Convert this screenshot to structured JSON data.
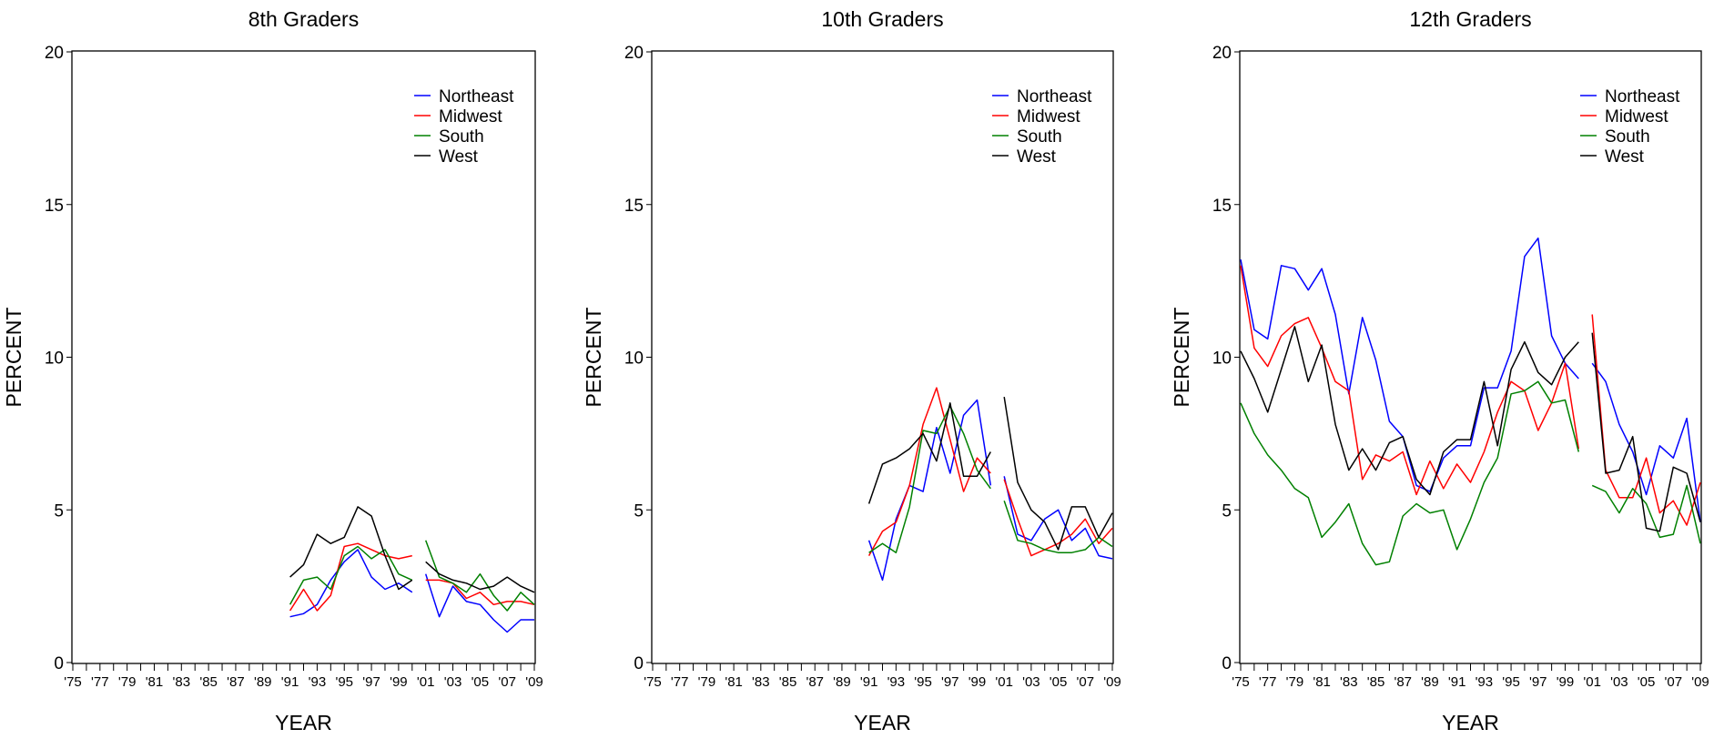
{
  "chart_data": [
    {
      "type": "line",
      "title": "8th Graders",
      "xlabel": "YEAR",
      "ylabel": "PERCENT",
      "ylim": [
        0,
        20
      ],
      "yticks": [
        "0",
        "5",
        "10",
        "15",
        "20"
      ],
      "xticks": [
        "'75",
        "'77",
        "'79",
        "'81",
        "'83",
        "'85",
        "'87",
        "'89",
        "'91",
        "'93",
        "'95",
        "'97",
        "'99",
        "'01",
        "'03",
        "'05",
        "'07",
        "'09"
      ],
      "xlim": [
        1975,
        2009
      ],
      "legend_position": "top-right",
      "series": [
        {
          "name": "Northeast",
          "color": "#0000ff",
          "segments": [
            {
              "x": [
                1991,
                1992,
                1993,
                1994,
                1995,
                1996,
                1997,
                1998,
                1999,
                2000
              ],
              "y": [
                1.5,
                1.6,
                1.9,
                2.7,
                3.3,
                3.7,
                2.8,
                2.4,
                2.6,
                2.3
              ]
            },
            {
              "x": [
                2001,
                2002,
                2003,
                2004,
                2005,
                2006,
                2007,
                2008,
                2009
              ],
              "y": [
                2.9,
                1.5,
                2.5,
                2.0,
                1.9,
                1.4,
                1.0,
                1.4,
                1.4
              ]
            }
          ]
        },
        {
          "name": "Midwest",
          "color": "#ff0000",
          "segments": [
            {
              "x": [
                1991,
                1992,
                1993,
                1994,
                1995,
                1996,
                1997,
                1998,
                1999,
                2000
              ],
              "y": [
                1.7,
                2.4,
                1.7,
                2.2,
                3.8,
                3.9,
                3.7,
                3.5,
                3.4,
                3.5
              ]
            },
            {
              "x": [
                2001,
                2002,
                2003,
                2004,
                2005,
                2006,
                2007,
                2008,
                2009
              ],
              "y": [
                2.7,
                2.7,
                2.6,
                2.1,
                2.3,
                1.9,
                2.0,
                2.0,
                1.9
              ]
            }
          ]
        },
        {
          "name": "South",
          "color": "#008000",
          "segments": [
            {
              "x": [
                1991,
                1992,
                1993,
                1994,
                1995,
                1996,
                1997,
                1998,
                1999,
                2000
              ],
              "y": [
                1.9,
                2.7,
                2.8,
                2.4,
                3.5,
                3.8,
                3.4,
                3.7,
                2.9,
                2.7
              ]
            },
            {
              "x": [
                2001,
                2002,
                2003,
                2004,
                2005,
                2006,
                2007,
                2008,
                2009
              ],
              "y": [
                4.0,
                2.8,
                2.6,
                2.3,
                2.9,
                2.2,
                1.7,
                2.3,
                1.9
              ]
            }
          ]
        },
        {
          "name": "West",
          "color": "#000000",
          "segments": [
            {
              "x": [
                1991,
                1992,
                1993,
                1994,
                1995,
                1996,
                1997,
                1998,
                1999,
                2000
              ],
              "y": [
                2.8,
                3.2,
                4.2,
                3.9,
                4.1,
                5.1,
                4.8,
                3.5,
                2.4,
                2.7
              ]
            },
            {
              "x": [
                2001,
                2002,
                2003,
                2004,
                2005,
                2006,
                2007,
                2008,
                2009
              ],
              "y": [
                3.3,
                2.9,
                2.7,
                2.6,
                2.4,
                2.5,
                2.8,
                2.5,
                2.3
              ]
            }
          ]
        }
      ]
    },
    {
      "type": "line",
      "title": "10th Graders",
      "xlabel": "YEAR",
      "ylabel": "PERCENT",
      "ylim": [
        0,
        20
      ],
      "yticks": [
        "0",
        "5",
        "10",
        "15",
        "20"
      ],
      "xticks": [
        "'75",
        "'77",
        "'79",
        "'81",
        "'83",
        "'85",
        "'87",
        "'89",
        "'91",
        "'93",
        "'95",
        "'97",
        "'99",
        "'01",
        "'03",
        "'05",
        "'07",
        "'09"
      ],
      "xlim": [
        1975,
        2009
      ],
      "legend_position": "top-right",
      "series": [
        {
          "name": "Northeast",
          "color": "#0000ff",
          "segments": [
            {
              "x": [
                1991,
                1992,
                1993,
                1994,
                1995,
                1996,
                1997,
                1998,
                1999,
                2000
              ],
              "y": [
                4.0,
                2.7,
                4.7,
                5.8,
                5.6,
                7.7,
                6.2,
                8.1,
                8.6,
                5.8
              ]
            },
            {
              "x": [
                2001,
                2002,
                2003,
                2004,
                2005,
                2006,
                2007,
                2008,
                2009
              ],
              "y": [
                6.1,
                4.2,
                4.0,
                4.7,
                5.0,
                4.0,
                4.4,
                3.5,
                3.4
              ]
            }
          ]
        },
        {
          "name": "Midwest",
          "color": "#ff0000",
          "segments": [
            {
              "x": [
                1991,
                1992,
                1993,
                1994,
                1995,
                1996,
                1997,
                1998,
                1999,
                2000
              ],
              "y": [
                3.5,
                4.3,
                4.6,
                5.8,
                7.8,
                9.0,
                7.3,
                5.6,
                6.7,
                6.2
              ]
            },
            {
              "x": [
                2001,
                2002,
                2003,
                2004,
                2005,
                2006,
                2007,
                2008,
                2009
              ],
              "y": [
                6.0,
                4.7,
                3.5,
                3.7,
                3.9,
                4.2,
                4.7,
                3.9,
                4.4
              ]
            }
          ]
        },
        {
          "name": "South",
          "color": "#008000",
          "segments": [
            {
              "x": [
                1991,
                1992,
                1993,
                1994,
                1995,
                1996,
                1997,
                1998,
                1999,
                2000
              ],
              "y": [
                3.6,
                3.9,
                3.6,
                5.1,
                7.6,
                7.5,
                8.4,
                7.5,
                6.3,
                5.7
              ]
            },
            {
              "x": [
                2001,
                2002,
                2003,
                2004,
                2005,
                2006,
                2007,
                2008,
                2009
              ],
              "y": [
                5.3,
                4.0,
                3.9,
                3.7,
                3.6,
                3.6,
                3.7,
                4.1,
                3.8
              ]
            }
          ]
        },
        {
          "name": "West",
          "color": "#000000",
          "segments": [
            {
              "x": [
                1991,
                1992,
                1993,
                1994,
                1995,
                1996,
                1997,
                1998,
                1999,
                2000
              ],
              "y": [
                5.2,
                6.5,
                6.7,
                7.0,
                7.5,
                6.6,
                8.5,
                6.1,
                6.1,
                6.9
              ]
            },
            {
              "x": [
                2001,
                2002,
                2003,
                2004,
                2005,
                2006,
                2007,
                2008,
                2009
              ],
              "y": [
                8.7,
                5.9,
                5.0,
                4.6,
                3.7,
                5.1,
                5.1,
                4.1,
                4.9
              ]
            }
          ]
        }
      ]
    },
    {
      "type": "line",
      "title": "12th Graders",
      "xlabel": "YEAR",
      "ylabel": "PERCENT",
      "ylim": [
        0,
        20
      ],
      "yticks": [
        "0",
        "5",
        "10",
        "15",
        "20"
      ],
      "xticks": [
        "'75",
        "'77",
        "'79",
        "'81",
        "'83",
        "'85",
        "'87",
        "'89",
        "'91",
        "'93",
        "'95",
        "'97",
        "'99",
        "'01",
        "'03",
        "'05",
        "'07",
        "'09"
      ],
      "xlim": [
        1975,
        2009
      ],
      "legend_position": "top-right",
      "series": [
        {
          "name": "Northeast",
          "color": "#0000ff",
          "segments": [
            {
              "x": [
                1975,
                1976,
                1977,
                1978,
                1979,
                1980,
                1981,
                1982,
                1983,
                1984,
                1985,
                1986,
                1987,
                1988,
                1989,
                1990,
                1991,
                1992,
                1993,
                1994,
                1995,
                1996,
                1997,
                1998,
                1999,
                2000
              ],
              "y": [
                13.2,
                10.9,
                10.6,
                13.0,
                12.9,
                12.2,
                12.9,
                11.4,
                8.8,
                11.3,
                9.9,
                7.9,
                7.4,
                5.8,
                5.6,
                6.7,
                7.1,
                7.1,
                9.0,
                9.0,
                10.2,
                13.3,
                13.9,
                10.7,
                9.8,
                9.3
              ]
            },
            {
              "x": [
                2001,
                2002,
                2003,
                2004,
                2005,
                2006,
                2007,
                2008,
                2009
              ],
              "y": [
                9.8,
                9.2,
                7.8,
                6.9,
                5.5,
                7.1,
                6.7,
                8.0,
                4.6
              ]
            }
          ]
        },
        {
          "name": "Midwest",
          "color": "#ff0000",
          "segments": [
            {
              "x": [
                1975,
                1976,
                1977,
                1978,
                1979,
                1980,
                1981,
                1982,
                1983,
                1984,
                1985,
                1986,
                1987,
                1988,
                1989,
                1990,
                1991,
                1992,
                1993,
                1994,
                1995,
                1996,
                1997,
                1998,
                1999,
                2000
              ],
              "y": [
                13.0,
                10.3,
                9.7,
                10.7,
                11.1,
                11.3,
                10.3,
                9.2,
                8.9,
                6.0,
                6.8,
                6.6,
                6.9,
                5.5,
                6.6,
                5.7,
                6.5,
                5.9,
                6.9,
                8.2,
                9.2,
                8.9,
                7.6,
                8.5,
                9.8,
                7.0
              ]
            },
            {
              "x": [
                2001,
                2002,
                2003,
                2004,
                2005,
                2006,
                2007,
                2008,
                2009
              ],
              "y": [
                11.4,
                6.3,
                5.4,
                5.4,
                6.7,
                4.9,
                5.3,
                4.5,
                5.9
              ]
            }
          ]
        },
        {
          "name": "South",
          "color": "#008000",
          "segments": [
            {
              "x": [
                1975,
                1976,
                1977,
                1978,
                1979,
                1980,
                1981,
                1982,
                1983,
                1984,
                1985,
                1986,
                1987,
                1988,
                1989,
                1990,
                1991,
                1992,
                1993,
                1994,
                1995,
                1996,
                1997,
                1998,
                1999,
                2000
              ],
              "y": [
                8.5,
                7.5,
                6.8,
                6.3,
                5.7,
                5.4,
                4.1,
                4.6,
                5.2,
                3.9,
                3.2,
                3.3,
                4.8,
                5.2,
                4.9,
                5.0,
                3.7,
                4.7,
                5.9,
                6.7,
                8.8,
                8.9,
                9.2,
                8.5,
                8.6,
                6.9
              ]
            },
            {
              "x": [
                2001,
                2002,
                2003,
                2004,
                2005,
                2006,
                2007,
                2008,
                2009
              ],
              "y": [
                5.8,
                5.6,
                4.9,
                5.7,
                5.2,
                4.1,
                4.2,
                5.8,
                3.9
              ]
            }
          ]
        },
        {
          "name": "West",
          "color": "#000000",
          "segments": [
            {
              "x": [
                1975,
                1976,
                1977,
                1978,
                1979,
                1980,
                1981,
                1982,
                1983,
                1984,
                1985,
                1986,
                1987,
                1988,
                1989,
                1990,
                1991,
                1992,
                1993,
                1994,
                1995,
                1996,
                1997,
                1998,
                1999,
                2000
              ],
              "y": [
                10.2,
                9.3,
                8.2,
                9.6,
                11.0,
                9.2,
                10.4,
                7.8,
                6.3,
                7.0,
                6.3,
                7.2,
                7.4,
                6.0,
                5.5,
                6.9,
                7.3,
                7.3,
                9.2,
                7.1,
                9.6,
                10.5,
                9.5,
                9.1,
                10.0,
                10.5
              ]
            },
            {
              "x": [
                2001,
                2002,
                2003,
                2004,
                2005,
                2006,
                2007,
                2008,
                2009
              ],
              "y": [
                10.8,
                6.2,
                6.3,
                7.4,
                4.4,
                4.3,
                6.4,
                6.2,
                4.6
              ]
            }
          ]
        }
      ]
    }
  ]
}
